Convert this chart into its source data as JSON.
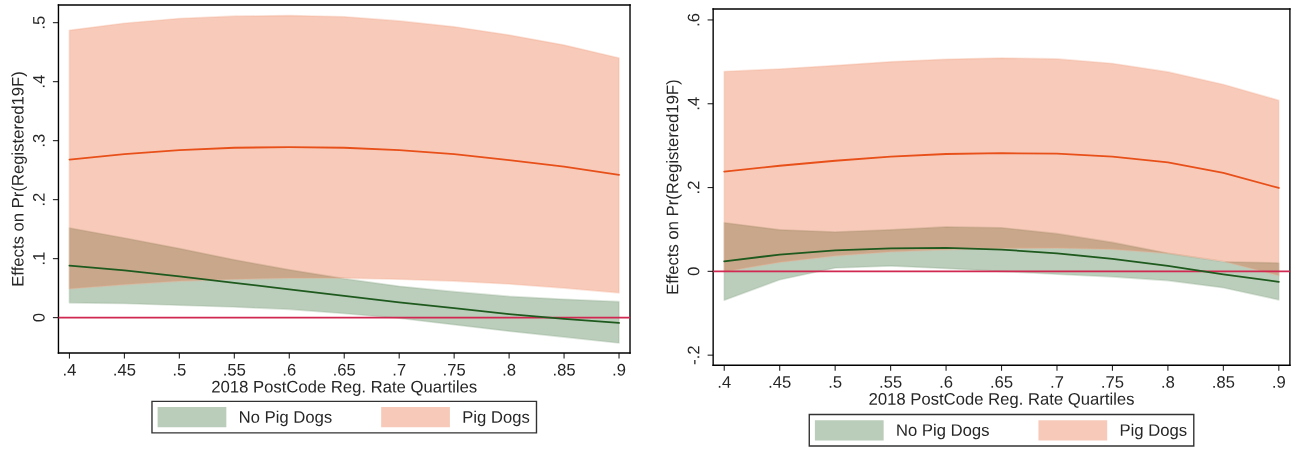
{
  "chart_data": [
    {
      "type": "line",
      "xlabel": "2018 PostCode Reg. Rate Quartiles",
      "ylabel": "Effects on Pr(Registered19F)",
      "x": [
        0.4,
        0.45,
        0.5,
        0.55,
        0.6,
        0.65,
        0.7,
        0.75,
        0.8,
        0.85,
        0.9
      ],
      "series": [
        {
          "name": "No Pig Dogs",
          "color": "#1e5a1e",
          "values": [
            0.088,
            0.08,
            0.07,
            0.059,
            0.048,
            0.037,
            0.026,
            0.016,
            0.006,
            -0.002,
            -0.009
          ],
          "lower": [
            0.025,
            0.024,
            0.021,
            0.018,
            0.014,
            0.007,
            -0.001,
            -0.012,
            -0.023,
            -0.033,
            -0.043
          ],
          "upper": [
            0.152,
            0.135,
            0.117,
            0.098,
            0.081,
            0.066,
            0.053,
            0.044,
            0.036,
            0.031,
            0.027
          ]
        },
        {
          "name": "Pig Dogs",
          "color": "#e8501a",
          "values": [
            0.268,
            0.277,
            0.284,
            0.288,
            0.289,
            0.288,
            0.284,
            0.277,
            0.267,
            0.256,
            0.242
          ],
          "lower": [
            0.049,
            0.056,
            0.062,
            0.065,
            0.067,
            0.067,
            0.065,
            0.062,
            0.057,
            0.05,
            0.042
          ],
          "upper": [
            0.487,
            0.499,
            0.507,
            0.511,
            0.512,
            0.51,
            0.503,
            0.493,
            0.479,
            0.462,
            0.44
          ]
        }
      ],
      "ref_lines": [
        {
          "axis": "y",
          "value": 0,
          "color": "#d02850"
        }
      ],
      "xlim": [
        0.39,
        0.91
      ],
      "xticks": [
        {
          "value": 0.4,
          "label": ".4"
        },
        {
          "value": 0.45,
          "label": ".45"
        },
        {
          "value": 0.5,
          "label": ".5"
        },
        {
          "value": 0.55,
          "label": ".55"
        },
        {
          "value": 0.6,
          "label": ".6"
        },
        {
          "value": 0.65,
          "label": ".65"
        },
        {
          "value": 0.7,
          "label": ".7"
        },
        {
          "value": 0.75,
          "label": ".75"
        },
        {
          "value": 0.8,
          "label": ".8"
        },
        {
          "value": 0.85,
          "label": ".85"
        },
        {
          "value": 0.9,
          "label": ".9"
        }
      ],
      "ylim": [
        -0.06,
        0.53
      ],
      "yticks": [
        0,
        {
          "value": 0.1,
          "label": ".1"
        },
        {
          "value": 0.2,
          "label": ".2"
        },
        {
          "value": 0.3,
          "label": ".3"
        },
        {
          "value": 0.4,
          "label": ".4"
        },
        {
          "value": 0.5,
          "label": ".5"
        }
      ],
      "grid": false,
      "legend": "bottom"
    },
    {
      "type": "line",
      "xlabel": "2018 PostCode Reg. Rate Quartiles",
      "ylabel": "Effects on Pr(Registered19F)",
      "x": [
        0.4,
        0.45,
        0.5,
        0.55,
        0.6,
        0.65,
        0.7,
        0.75,
        0.8,
        0.85,
        0.9
      ],
      "series": [
        {
          "name": "No Pig Dogs",
          "color": "#1e5a1e",
          "values": [
            0.024,
            0.04,
            0.05,
            0.055,
            0.056,
            0.052,
            0.043,
            0.03,
            0.013,
            -0.007,
            -0.025
          ],
          "lower": [
            -0.069,
            -0.02,
            0.008,
            0.013,
            0.007,
            0.0,
            -0.007,
            -0.013,
            -0.022,
            -0.039,
            -0.068
          ],
          "upper": [
            0.116,
            0.099,
            0.094,
            0.099,
            0.106,
            0.104,
            0.09,
            0.069,
            0.043,
            0.023,
            0.02
          ]
        },
        {
          "name": "Pig Dogs",
          "color": "#e8501a",
          "values": [
            0.238,
            0.252,
            0.264,
            0.274,
            0.28,
            0.282,
            0.281,
            0.274,
            0.26,
            0.235,
            0.199
          ],
          "lower": [
            -0.001,
            0.022,
            0.037,
            0.047,
            0.052,
            0.055,
            0.056,
            0.053,
            0.043,
            0.024,
            -0.01
          ],
          "upper": [
            0.477,
            0.483,
            0.491,
            0.5,
            0.506,
            0.509,
            0.507,
            0.496,
            0.476,
            0.446,
            0.408
          ]
        }
      ],
      "ref_lines": [
        {
          "axis": "y",
          "value": 0,
          "color": "#d02850"
        }
      ],
      "xlim": [
        0.39,
        0.91
      ],
      "xticks": [
        {
          "value": 0.4,
          "label": ".4"
        },
        {
          "value": 0.45,
          "label": ".45"
        },
        {
          "value": 0.5,
          "label": ".5"
        },
        {
          "value": 0.55,
          "label": ".55"
        },
        {
          "value": 0.6,
          "label": ".6"
        },
        {
          "value": 0.65,
          "label": ".65"
        },
        {
          "value": 0.7,
          "label": ".7"
        },
        {
          "value": 0.75,
          "label": ".75"
        },
        {
          "value": 0.8,
          "label": ".8"
        },
        {
          "value": 0.85,
          "label": ".85"
        },
        {
          "value": 0.9,
          "label": ".9"
        }
      ],
      "ylim": [
        -0.224,
        0.626
      ],
      "yticks": [
        {
          "value": -0.2,
          "label": "-.2"
        },
        0,
        {
          "value": 0.2,
          "label": ".2"
        },
        {
          "value": 0.4,
          "label": ".4"
        },
        {
          "value": 0.6,
          "label": ".6"
        }
      ],
      "grid": false,
      "legend": "bottom"
    }
  ]
}
